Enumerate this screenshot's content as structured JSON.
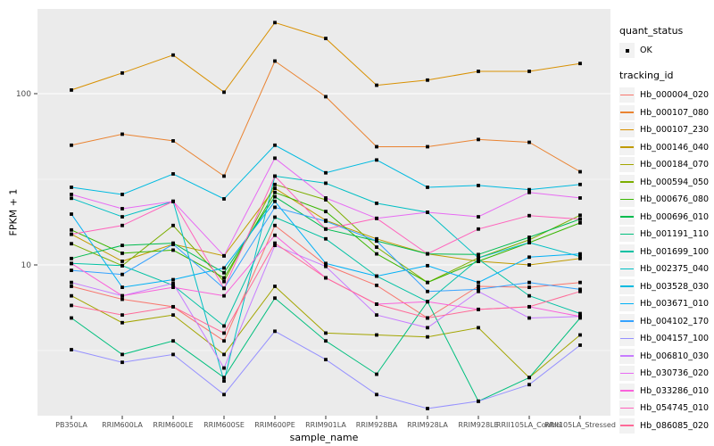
{
  "figure": {
    "y_axis": {
      "label": "FPKM + 1"
    },
    "x_axis": {
      "label": "sample_name"
    },
    "legend": {
      "quant_status_title": "quant_status",
      "ok_label": "OK",
      "tracking_id_title": "tracking_id"
    },
    "style": {
      "panel_bg": "#EBEBEB",
      "grid_color": "#FFFFFF",
      "point_color": "#000000",
      "tick_text_color": "#4D4D4D",
      "legend_key_bg": "#F2F2F2"
    }
  },
  "chart_data": {
    "type": "line",
    "title": "",
    "xlabel": "sample_name",
    "ylabel": "FPKM + 1",
    "yscale": "log10",
    "ylim": [
      1.33,
      312
    ],
    "yticks": [
      10,
      100
    ],
    "grid": "white major and minor gridlines on gray panel",
    "legend_position": "right",
    "point_marker": "black filled square (quant_status OK)",
    "categories": [
      "PB350LA",
      "RRIM600LA",
      "RRIM600LE",
      "RRIM600SE",
      "RRIM600PE",
      "RRIM901LA",
      "RRIM928BA",
      "RRIM928LA",
      "RRIM928LE",
      "RRII105LA_Control",
      "RRII105LA_Stressed"
    ],
    "series": [
      {
        "name": "Hb_000004_020",
        "color": "#F8766D",
        "values": [
          7.5,
          6.3,
          5.7,
          3.6,
          17,
          10,
          7.6,
          4.9,
          7.5,
          7.4,
          7.9
        ]
      },
      {
        "name": "Hb_000107_080",
        "color": "#EA8331",
        "values": [
          50,
          58,
          53,
          33,
          155,
          96,
          49,
          49,
          54,
          52,
          35
        ]
      },
      {
        "name": "Hb_000107_230",
        "color": "#D89000",
        "values": [
          105,
          132,
          168,
          102,
          260,
          210,
          112,
          120,
          135,
          135,
          150
        ]
      },
      {
        "name": "Hb_000146_040",
        "color": "#C09B00",
        "values": [
          15.1,
          10.5,
          13.2,
          11.3,
          28,
          18.2,
          14.2,
          11.6,
          10.5,
          10,
          10.9
        ]
      },
      {
        "name": "Hb_000184_070",
        "color": "#A3A500",
        "values": [
          6.6,
          4.6,
          5.1,
          3.0,
          7.5,
          4.0,
          3.9,
          3.8,
          4.3,
          2.2,
          3.9
        ]
      },
      {
        "name": "Hb_000594_050",
        "color": "#7CAE00",
        "values": [
          13.3,
          9.9,
          17,
          8.0,
          29.5,
          24,
          12.7,
          7.9,
          11,
          14,
          19.5
        ]
      },
      {
        "name": "Hb_000676_080",
        "color": "#39B600",
        "values": [
          16,
          11.7,
          12.2,
          8.4,
          26.5,
          20.5,
          11.6,
          7.9,
          10.5,
          13.5,
          17.6
        ]
      },
      {
        "name": "Hb_000696_010",
        "color": "#00BB4E",
        "values": [
          10.9,
          13,
          13.4,
          9.0,
          25,
          16.2,
          13.8,
          11.6,
          11.5,
          14.5,
          18.5
        ]
      },
      {
        "name": "Hb_001191_110",
        "color": "#00BF7D",
        "values": [
          4.9,
          3.0,
          3.6,
          2.2,
          6.4,
          3.6,
          2.3,
          6.1,
          1.6,
          2.2,
          4.9
        ]
      },
      {
        "name": "Hb_001699_100",
        "color": "#00C1A3",
        "values": [
          10.2,
          9.9,
          7.6,
          4.4,
          19,
          14.2,
          8.6,
          6.1,
          10.8,
          6.6,
          5.2
        ]
      },
      {
        "name": "Hb_002375_040",
        "color": "#00BFC4",
        "values": [
          24.5,
          19.1,
          23.5,
          2.1,
          33,
          30,
          22.9,
          20.3,
          11,
          13.5,
          11.2
        ]
      },
      {
        "name": "Hb_003528_030",
        "color": "#00BAE0",
        "values": [
          28.4,
          25.8,
          34,
          24.3,
          50,
          34.5,
          41,
          28.4,
          29.1,
          27.5,
          29.5
        ]
      },
      {
        "name": "Hb_003671_010",
        "color": "#00B0F6",
        "values": [
          19.8,
          7.4,
          8.2,
          9.6,
          23.5,
          10.2,
          8.6,
          9.9,
          7.9,
          11.1,
          11.6
        ]
      },
      {
        "name": "Hb_004102_170",
        "color": "#35A2FF",
        "values": [
          9.3,
          8.8,
          13.2,
          7.3,
          21.7,
          18,
          13.8,
          7.0,
          7.2,
          7.9,
          7.2
        ]
      },
      {
        "name": "Hb_004157_100",
        "color": "#9590FF",
        "values": [
          3.2,
          2.7,
          3.0,
          1.75,
          4.1,
          2.8,
          1.75,
          1.45,
          1.6,
          2.0,
          3.4
        ]
      },
      {
        "name": "Hb_006810_030",
        "color": "#C77CFF",
        "values": [
          7.9,
          6.6,
          7.8,
          2.5,
          13,
          9.8,
          5.1,
          4.3,
          7.0,
          4.9,
          5.0
        ]
      },
      {
        "name": "Hb_030736_020",
        "color": "#E76BF3",
        "values": [
          25.8,
          21.3,
          23.5,
          11.3,
          42,
          24.6,
          18.7,
          20.3,
          19.1,
          26.5,
          24.6
        ]
      },
      {
        "name": "Hb_033286_010",
        "color": "#FA62DB",
        "values": [
          10.2,
          6.6,
          7.4,
          6.6,
          14.9,
          8.4,
          5.9,
          6.1,
          5.5,
          5.7,
          5.0
        ]
      },
      {
        "name": "Hb_054745_010",
        "color": "#FF62BC",
        "values": [
          15.1,
          17,
          23.5,
          7.3,
          33,
          16.2,
          18.7,
          11.6,
          16.2,
          19.4,
          18.5
        ]
      },
      {
        "name": "Hb_086085_020",
        "color": "#FF6A98",
        "values": [
          5.8,
          5.1,
          5.7,
          4.0,
          13.4,
          8.4,
          5.9,
          4.9,
          5.5,
          5.7,
          7.0
        ]
      }
    ]
  }
}
